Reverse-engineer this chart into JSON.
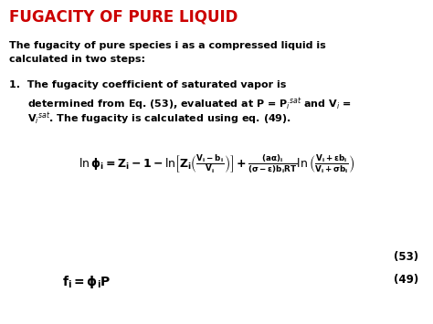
{
  "title": "FUGACITY OF PURE LIQUID",
  "title_color": "#cc0000",
  "bg_color": "#ffffff",
  "text_color": "#000000",
  "figsize": [
    4.74,
    3.55
  ],
  "dpi": 100,
  "eq53_label": "(53)",
  "eq49_label": "(49)"
}
